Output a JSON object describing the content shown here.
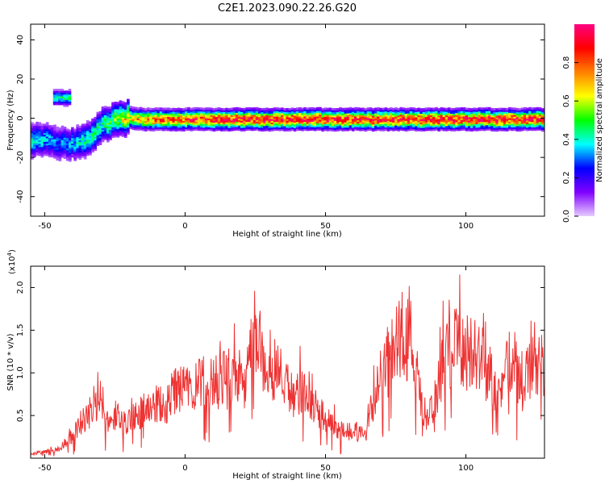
{
  "title": "C2E1.2023.090.22.26.G20",
  "chart_data": [
    {
      "type": "heatmap",
      "xlabel": "Height of straight line (km)",
      "ylabel": "Frequency (Hz)",
      "xlim": [
        -55,
        128
      ],
      "ylim": [
        -50,
        48
      ],
      "xticks": [
        -50,
        0,
        50,
        100
      ],
      "yticks": [
        -40,
        -20,
        0,
        20,
        40
      ],
      "colorbar": {
        "label": "Normalized spectral amplitude",
        "range": [
          0,
          1
        ],
        "ticks": [
          "0.0",
          "0.2",
          "0.4",
          "0.6",
          "0.8"
        ],
        "colors": [
          "#e6ccff",
          "#8000ff",
          "#0000ff",
          "#00ffff",
          "#00ff00",
          "#ffff00",
          "#ff8000",
          "#ff0000",
          "#ff0080"
        ]
      },
      "ridge": {
        "x": [
          -55,
          -50,
          -45,
          -40,
          -35,
          -30,
          -25,
          -20,
          -15,
          -10,
          0,
          20,
          40,
          60,
          80,
          100,
          128
        ],
        "frequency": [
          -10,
          -10,
          -12,
          -12,
          -10,
          -3,
          0,
          1,
          0,
          0,
          0,
          0,
          0,
          0,
          0,
          0,
          0
        ],
        "amplitude": [
          0.4,
          0.35,
          0.3,
          0.35,
          0.45,
          0.45,
          0.55,
          0.7,
          0.75,
          0.8,
          0.85,
          0.9,
          0.9,
          0.9,
          0.9,
          0.9,
          0.9
        ]
      },
      "secondary_blob": {
        "x_range": [
          -47,
          -41
        ],
        "frequency": 11,
        "amplitude": 0.45
      }
    },
    {
      "type": "line",
      "xlabel": "Height of straight line (km)",
      "ylabel": "SNR (10 * v/v)",
      "y_multiplier": "(x10",
      "y_multiplier_exp": "4",
      "y_multiplier_close": ")",
      "xlim": [
        -55,
        128
      ],
      "ylim": [
        0,
        2.25
      ],
      "xticks": [
        -50,
        0,
        50,
        100
      ],
      "yticks": [
        "0.5",
        "1.0",
        "1.5",
        "2.0"
      ],
      "series": [
        {
          "color": "#ee3333",
          "x": [
            -55,
            -45,
            -42,
            -38,
            -35,
            -32,
            -30,
            -27,
            -25,
            -22,
            -20,
            -17,
            -15,
            -12,
            -10,
            -7,
            -5,
            -2,
            0,
            3,
            5,
            8,
            10,
            13,
            15,
            18,
            20,
            22,
            24,
            25,
            26,
            28,
            30,
            33,
            35,
            38,
            40,
            42,
            45,
            48,
            50,
            53,
            55,
            58,
            60,
            62,
            64,
            66,
            68,
            70,
            73,
            75,
            77,
            79,
            80,
            82,
            84,
            86,
            88,
            90,
            92,
            95,
            97,
            100,
            103,
            105,
            108,
            110,
            113,
            115,
            118,
            120,
            123,
            125,
            128
          ],
          "values": [
            0.05,
            0.1,
            0.2,
            0.35,
            0.5,
            0.6,
            0.7,
            0.45,
            0.5,
            0.4,
            0.45,
            0.5,
            0.55,
            0.6,
            0.65,
            0.6,
            0.75,
            0.8,
            0.85,
            0.8,
            0.85,
            0.9,
            0.85,
            0.95,
            0.9,
            1.0,
            0.95,
            0.9,
            1.35,
            1.6,
            1.3,
            1.2,
            1.1,
            1.05,
            0.9,
            0.75,
            0.8,
            0.85,
            0.65,
            0.55,
            0.45,
            0.4,
            0.35,
            0.3,
            0.35,
            0.3,
            0.25,
            0.55,
            0.75,
            1.0,
            1.15,
            1.35,
            1.45,
            1.4,
            1.55,
            1.1,
            0.7,
            0.45,
            0.6,
            0.8,
            1.15,
            1.3,
            1.4,
            1.25,
            1.35,
            1.2,
            1.0,
            0.9,
            0.8,
            1.2,
            1.05,
            0.85,
            1.0,
            1.1,
            1.0
          ]
        }
      ]
    }
  ]
}
